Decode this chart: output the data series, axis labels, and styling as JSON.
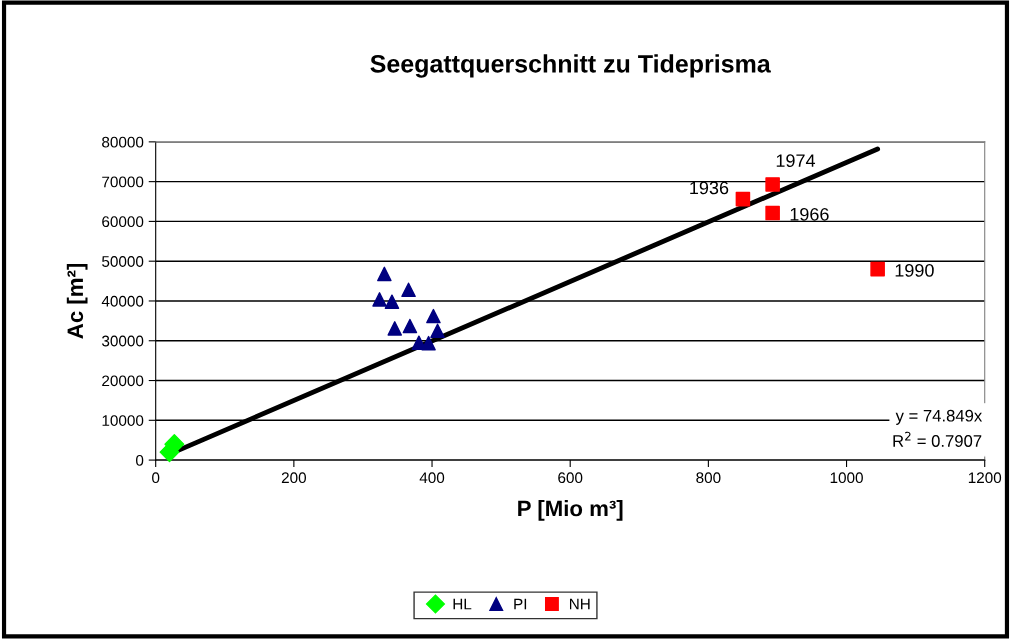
{
  "chart_data": {
    "type": "scatter",
    "title": "Seegattquerschnitt zu Tideprisma",
    "xlabel": "P [Mio m³]",
    "ylabel": "Ac [m²]",
    "xlim": [
      0,
      1200
    ],
    "xticks": [
      0,
      200,
      400,
      600,
      800,
      1000,
      1200
    ],
    "ylim": [
      0,
      80000
    ],
    "yticks": [
      0,
      10000,
      20000,
      30000,
      40000,
      50000,
      60000,
      70000,
      80000
    ],
    "grid": "y",
    "legend": "bottom",
    "series": [
      {
        "name": "HL",
        "color": "#00ff00",
        "marker": "diamond",
        "x": [
          20,
          27
        ],
        "values": [
          2000,
          4000
        ]
      },
      {
        "name": "PI",
        "color": "#000080",
        "marker": "triangle",
        "x": [
          331,
          324,
          342,
          366,
          346,
          368,
          402,
          408,
          381,
          395
        ],
        "values": [
          46800,
          40400,
          39800,
          42800,
          33100,
          33700,
          36200,
          32500,
          29500,
          29400
        ]
      },
      {
        "name": "NH",
        "color": "#ff0000",
        "marker": "square",
        "x": [
          850,
          893,
          893,
          1045
        ],
        "values": [
          65600,
          69300,
          62100,
          48000
        ]
      },
      {
        "type": "line",
        "color": "#000000",
        "marker": "none",
        "x": [
          20,
          1045
        ],
        "values": [
          1500,
          78200
        ]
      }
    ],
    "annotations": [
      {
        "text": "1936",
        "x": 850,
        "y": 65600
      },
      {
        "text": "1974",
        "x": 893,
        "y": 69300
      },
      {
        "text": "1966",
        "x": 893,
        "y": 62100
      },
      {
        "text": "1990",
        "x": 1045,
        "y": 48000
      },
      "y = 74.849x",
      "R$^{2}$ = 0.7907"
    ]
  }
}
